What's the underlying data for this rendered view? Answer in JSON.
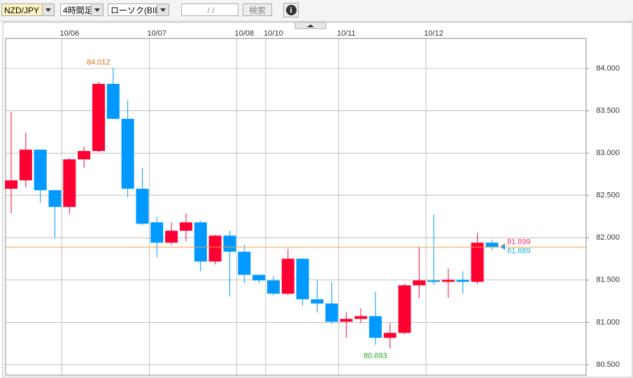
{
  "toolbar": {
    "symbol": "NZD/JPY",
    "period": "4時間足",
    "chart_kind": "ローソク(BID)",
    "date": "/  /",
    "search": "検索",
    "info": "i"
  },
  "chart_data": {
    "type": "candlestick",
    "categories": [
      null,
      null,
      null,
      null,
      "10/06",
      null,
      null,
      null,
      null,
      null,
      "10/07",
      null,
      null,
      null,
      null,
      null,
      "10/08",
      null,
      "10/10",
      null,
      null,
      null,
      null,
      "10/11",
      null,
      null,
      null,
      null,
      null,
      "10/12",
      null,
      null,
      null,
      null
    ],
    "open": [
      82.579,
      82.678,
      83.041,
      82.562,
      82.364,
      82.926,
      83.025,
      83.818,
      83.405,
      82.579,
      82.182,
      81.942,
      82.083,
      82.182,
      81.719,
      82.025,
      81.835,
      81.562,
      81.496,
      81.339,
      81.752,
      81.273,
      81.223,
      81.008,
      81.041,
      81.074,
      80.818,
      80.876,
      81.438,
      81.496,
      81.479,
      81.504,
      81.479,
      81.942
    ],
    "high": [
      83.488,
      83.24,
      83.041,
      82.562,
      82.94,
      83.074,
      83.843,
      84.012,
      83.628,
      82.826,
      82.248,
      82.182,
      82.289,
      82.198,
      82.033,
      82.083,
      81.917,
      81.562,
      81.545,
      81.868,
      81.76,
      81.496,
      81.479,
      81.124,
      81.165,
      81.364,
      80.992,
      81.455,
      81.893,
      82.273,
      81.636,
      81.603,
      82.058,
      81.975
    ],
    "low": [
      82.289,
      82.595,
      82.413,
      82.0,
      82.281,
      82.826,
      83.01,
      83.4,
      82.479,
      82.149,
      81.769,
      81.917,
      81.959,
      81.603,
      81.686,
      81.306,
      81.463,
      81.463,
      81.322,
      81.322,
      81.198,
      81.116,
      80.983,
      80.818,
      80.992,
      80.736,
      80.693,
      80.86,
      81.289,
      81.446,
      81.289,
      81.339,
      81.455,
      81.851
    ],
    "close": [
      82.678,
      83.041,
      82.562,
      82.364,
      82.926,
      83.025,
      83.818,
      83.405,
      82.579,
      82.165,
      81.942,
      82.083,
      82.182,
      81.719,
      82.025,
      81.835,
      81.562,
      81.496,
      81.339,
      81.752,
      81.273,
      81.223,
      81.008,
      81.041,
      81.074,
      80.818,
      80.876,
      81.438,
      81.496,
      81.479,
      81.504,
      81.479,
      81.942,
      81.889
    ],
    "up_color": "#ff0033",
    "down_color": "#0099ff",
    "ylim": [
      80.376,
      84.355
    ],
    "yticks": [
      {
        "value": 80.5,
        "label": "80.500"
      },
      {
        "value": 81,
        "label": "81.000"
      },
      {
        "value": 81.5,
        "label": "81.500"
      },
      {
        "value": 82,
        "label": "82.000"
      },
      {
        "value": 82.5,
        "label": "82.500"
      },
      {
        "value": 83,
        "label": "83.000"
      },
      {
        "value": 83.5,
        "label": "83.500"
      },
      {
        "value": 84,
        "label": "84.000"
      }
    ],
    "grid": true,
    "high_label": "84.012",
    "high_label_color": "#e07020",
    "low_label": "80.693",
    "low_label_color": "#22aa22",
    "price_lines": [
      {
        "value": 81.899,
        "label": "81.899",
        "color": "#e8336d"
      },
      {
        "value": 81.889,
        "label": "81.889",
        "color": "#1aaee0",
        "line_color": "#f0a040"
      }
    ]
  }
}
